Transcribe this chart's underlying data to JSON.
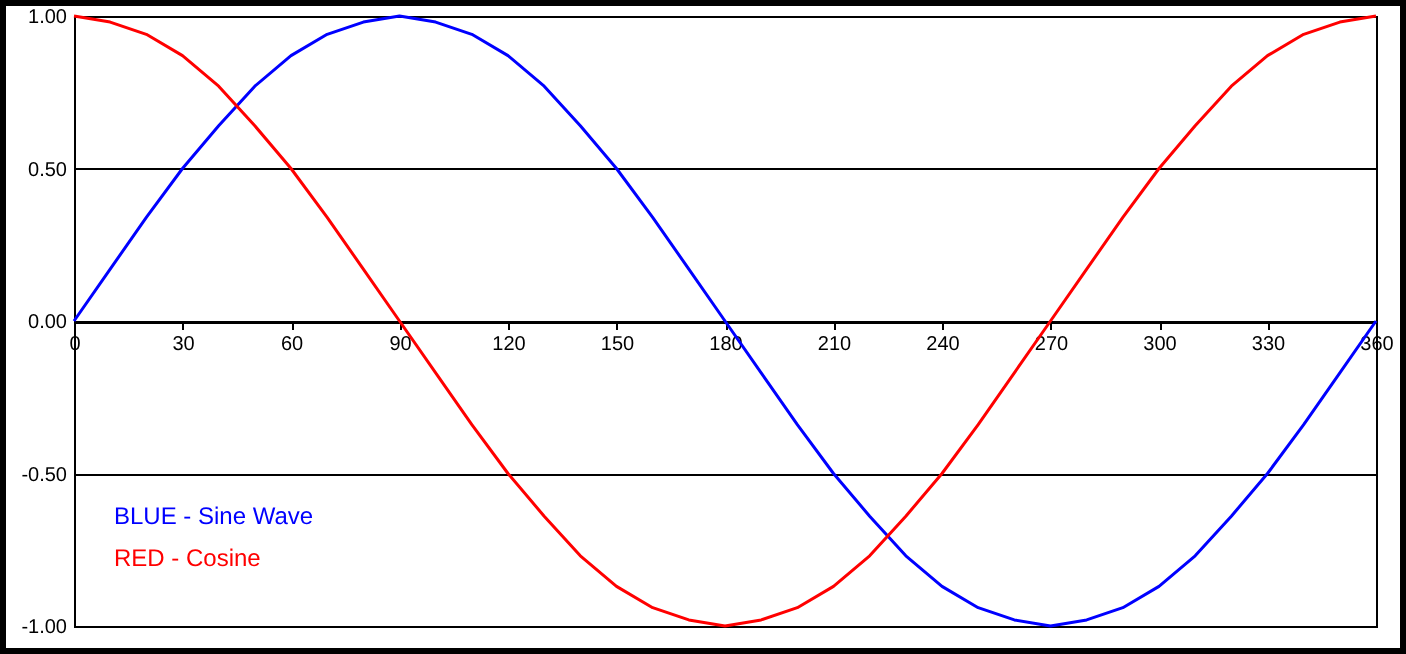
{
  "chart_data": {
    "type": "line",
    "x": [
      0,
      10,
      20,
      30,
      40,
      50,
      60,
      70,
      80,
      90,
      100,
      110,
      120,
      130,
      140,
      150,
      160,
      170,
      180,
      190,
      200,
      210,
      220,
      230,
      240,
      250,
      260,
      270,
      280,
      290,
      300,
      310,
      320,
      330,
      340,
      350,
      360
    ],
    "series": [
      {
        "name": "BLUE - Sine Wave",
        "color": "#0000ff",
        "values": [
          0,
          0.17,
          0.34,
          0.5,
          0.64,
          0.77,
          0.87,
          0.94,
          0.98,
          1,
          0.98,
          0.94,
          0.87,
          0.77,
          0.64,
          0.5,
          0.34,
          0.17,
          0,
          -0.17,
          -0.34,
          -0.5,
          -0.64,
          -0.77,
          -0.87,
          -0.94,
          -0.98,
          -1,
          -0.98,
          -0.94,
          -0.87,
          -0.77,
          -0.64,
          -0.5,
          -0.34,
          -0.17,
          0
        ]
      },
      {
        "name": "RED - Cosine",
        "color": "#ff0000",
        "values": [
          1,
          0.98,
          0.94,
          0.87,
          0.77,
          0.64,
          0.5,
          0.34,
          0.17,
          0,
          -0.17,
          -0.34,
          -0.5,
          -0.64,
          -0.77,
          -0.87,
          -0.94,
          -0.98,
          -1,
          -0.98,
          -0.94,
          -0.87,
          -0.77,
          -0.64,
          -0.5,
          -0.34,
          -0.17,
          0,
          0.17,
          0.34,
          0.5,
          0.64,
          0.77,
          0.87,
          0.94,
          0.98,
          1
        ]
      }
    ],
    "xlim": [
      0,
      360
    ],
    "xticks": [
      0,
      30,
      60,
      90,
      120,
      150,
      180,
      210,
      240,
      270,
      300,
      330,
      360
    ],
    "ylim": [
      -1,
      1
    ],
    "yticks": [
      {
        "value": -1,
        "label": "-1.00"
      },
      {
        "value": -0.5,
        "label": "-0.50"
      },
      {
        "value": 0,
        "label": "0.00"
      },
      {
        "value": 0.5,
        "label": "0.50"
      },
      {
        "value": 1,
        "label": "1.00"
      }
    ],
    "grid": "y",
    "legend": "bottom left",
    "marker": "none",
    "line_style": "solid"
  }
}
